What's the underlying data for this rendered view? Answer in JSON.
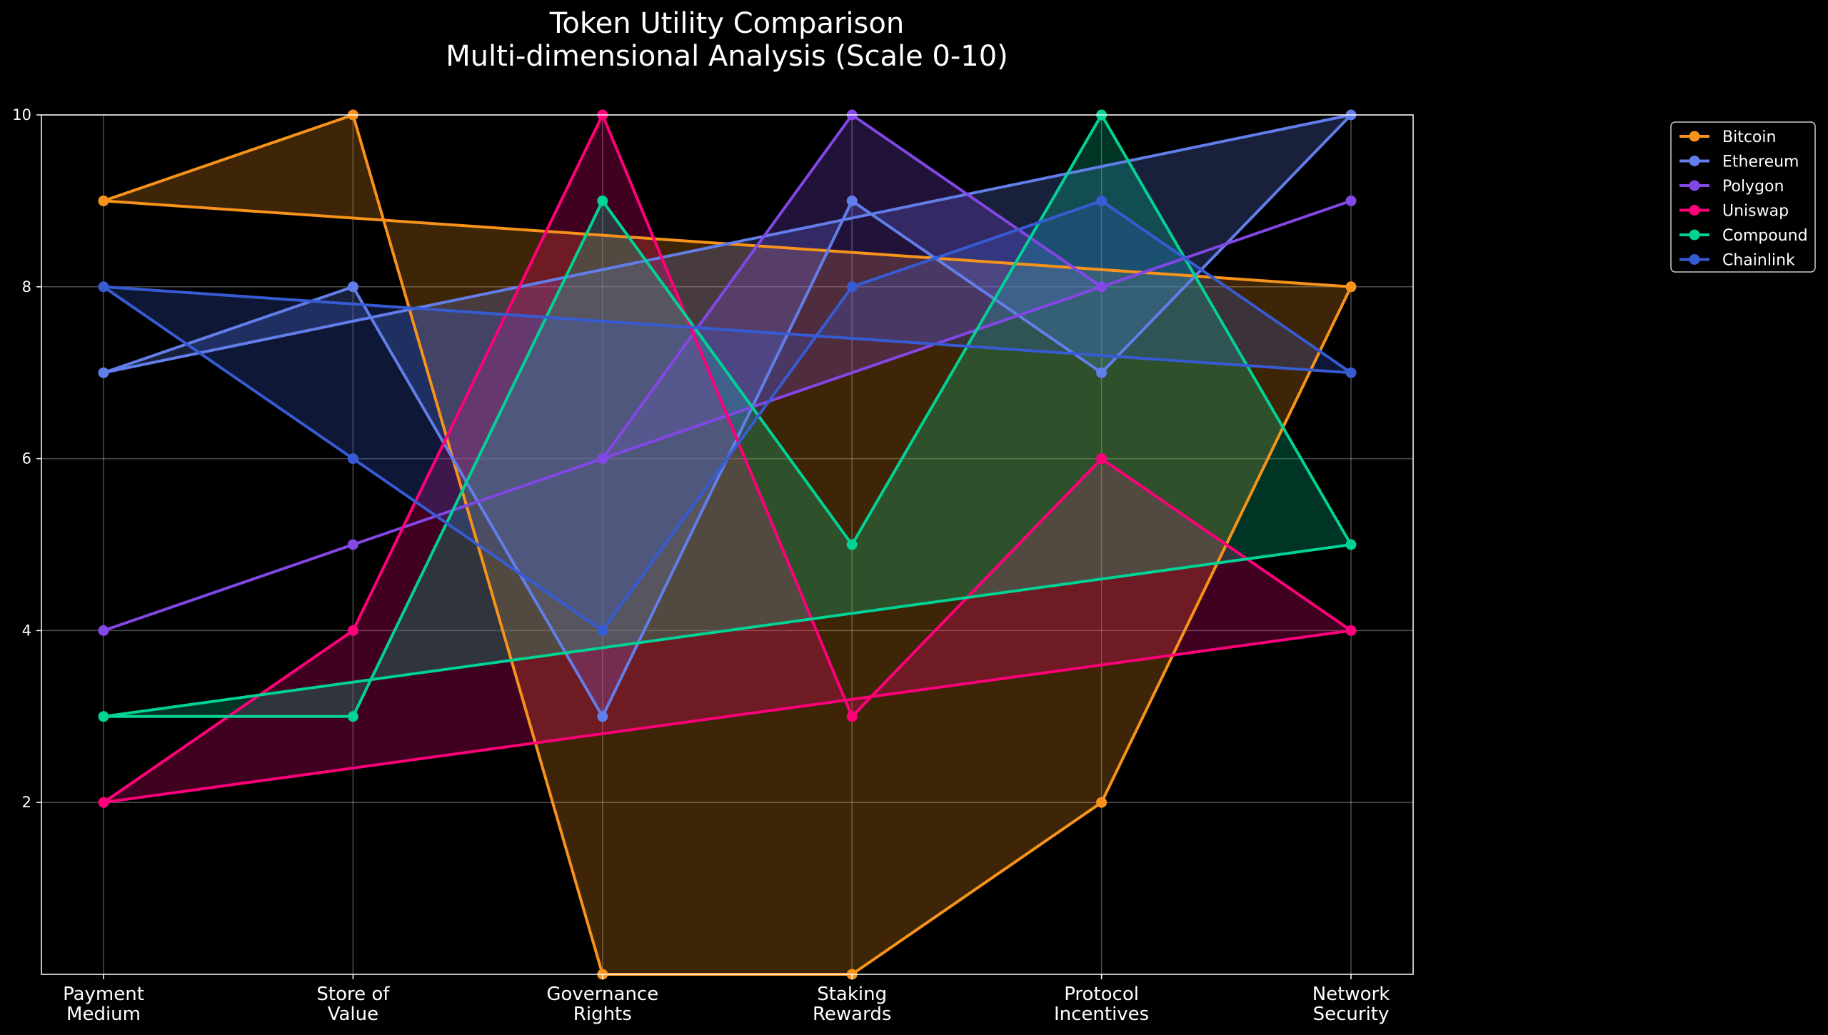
{
  "chart_data": {
    "type": "line",
    "title_lines": [
      "Token Utility Comparison",
      "Multi-dimensional Analysis (Scale 0-10)"
    ],
    "categories": [
      [
        "Payment",
        "Medium"
      ],
      [
        "Store of",
        "Value"
      ],
      [
        "Governance",
        "Rights"
      ],
      [
        "Staking",
        "Rewards"
      ],
      [
        "Protocol",
        "Incentives"
      ],
      [
        "Network",
        "Security"
      ]
    ],
    "ylim": [
      0,
      10
    ],
    "yticks": [
      2,
      4,
      6,
      8,
      10
    ],
    "grid": true,
    "legend_position": "top-right outside",
    "filled": true,
    "closed_polygon": true,
    "series": [
      {
        "name": "Bitcoin",
        "color": "#F7931A",
        "values": [
          9,
          10,
          0,
          0,
          2,
          8
        ]
      },
      {
        "name": "Ethereum",
        "color": "#627EEA",
        "values": [
          7,
          8,
          3,
          9,
          7,
          10
        ]
      },
      {
        "name": "Polygon",
        "color": "#8247E5",
        "values": [
          4,
          5,
          6,
          10,
          8,
          9
        ]
      },
      {
        "name": "Uniswap",
        "color": "#FF007A",
        "values": [
          2,
          4,
          10,
          3,
          6,
          4
        ]
      },
      {
        "name": "Compound",
        "color": "#00D395",
        "values": [
          3,
          3,
          9,
          5,
          10,
          5
        ]
      },
      {
        "name": "Chainlink",
        "color": "#375BD2",
        "values": [
          8,
          6,
          4,
          8,
          9,
          7
        ]
      }
    ]
  }
}
